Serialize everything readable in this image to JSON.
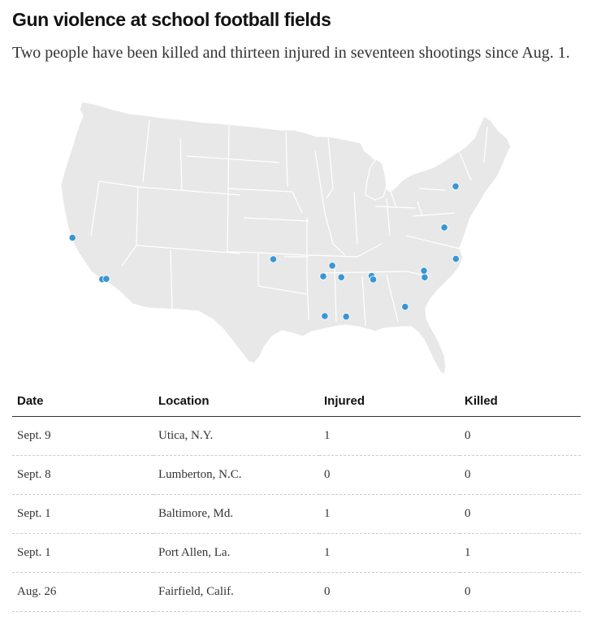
{
  "header": {
    "title": "Gun violence at school football fields",
    "subtitle": "Two people have been killed and thirteen injured in seventeen shootings since Aug. 1."
  },
  "map": {
    "region": "Contiguous United States",
    "fill_color": "#e8e8e8",
    "border_color": "#ffffff",
    "marker_color": "#3a96d2",
    "incidents": [
      {
        "lat": 43.1,
        "lon": -75.23
      },
      {
        "lat": 39.29,
        "lon": -76.61
      },
      {
        "lat": 38.25,
        "lon": -122.04
      },
      {
        "lat": 34.62,
        "lon": -79.01
      },
      {
        "lat": 30.45,
        "lon": -91.21
      },
      {
        "lat": 36.61,
        "lon": -75.2
      },
      {
        "lat": 35.2,
        "lon": -79.1
      },
      {
        "lat": 34.25,
        "lon": -118.4
      },
      {
        "lat": 34.25,
        "lon": -117.9
      },
      {
        "lat": 35.4,
        "lon": -97.5
      },
      {
        "lat": 35.0,
        "lon": -90.3
      },
      {
        "lat": 34.0,
        "lon": -91.4
      },
      {
        "lat": 34.0,
        "lon": -89.2
      },
      {
        "lat": 34.3,
        "lon": -85.5
      },
      {
        "lat": 34.0,
        "lon": -85.3
      },
      {
        "lat": 30.5,
        "lon": -88.6
      },
      {
        "lat": 31.8,
        "lon": -81.4
      }
    ]
  },
  "table": {
    "columns": [
      "Date",
      "Location",
      "Injured",
      "Killed"
    ],
    "rows": [
      {
        "date": "Sept. 9",
        "location": "Utica, N.Y.",
        "injured": "1",
        "killed": "0"
      },
      {
        "date": "Sept. 8",
        "location": "Lumberton, N.C.",
        "injured": "0",
        "killed": "0"
      },
      {
        "date": "Sept. 1",
        "location": "Baltimore, Md.",
        "injured": "1",
        "killed": "0"
      },
      {
        "date": "Sept. 1",
        "location": "Port Allen, La.",
        "injured": "1",
        "killed": "1"
      },
      {
        "date": "Aug. 26",
        "location": "Fairfield, Calif.",
        "injured": "0",
        "killed": "0"
      }
    ]
  }
}
